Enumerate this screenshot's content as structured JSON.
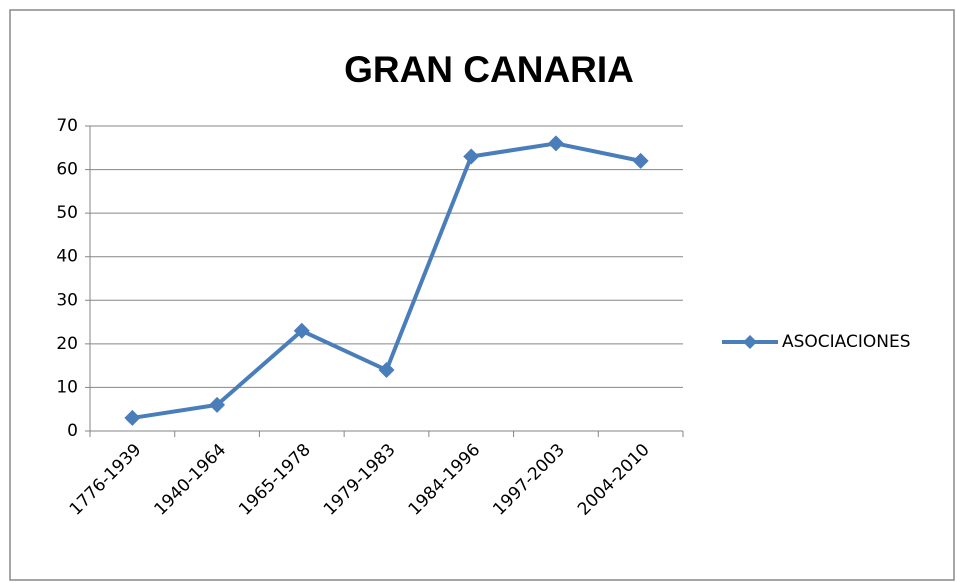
{
  "chart_data": {
    "type": "line",
    "title": "GRAN CANARIA",
    "categories": [
      "1776-1939",
      "1940-1964",
      "1965-1978",
      "1979-1983",
      "1984-1996",
      "1997-2003",
      "2004-2010"
    ],
    "series": [
      {
        "name": "ASOCIACIONES",
        "color": "#4a7ebb",
        "values": [
          3,
          6,
          23,
          14,
          63,
          66,
          62
        ]
      }
    ],
    "ylim": [
      0,
      70
    ],
    "yticks": [
      0,
      10,
      20,
      30,
      40,
      50,
      60,
      70
    ],
    "grid": true,
    "legend": "right"
  }
}
